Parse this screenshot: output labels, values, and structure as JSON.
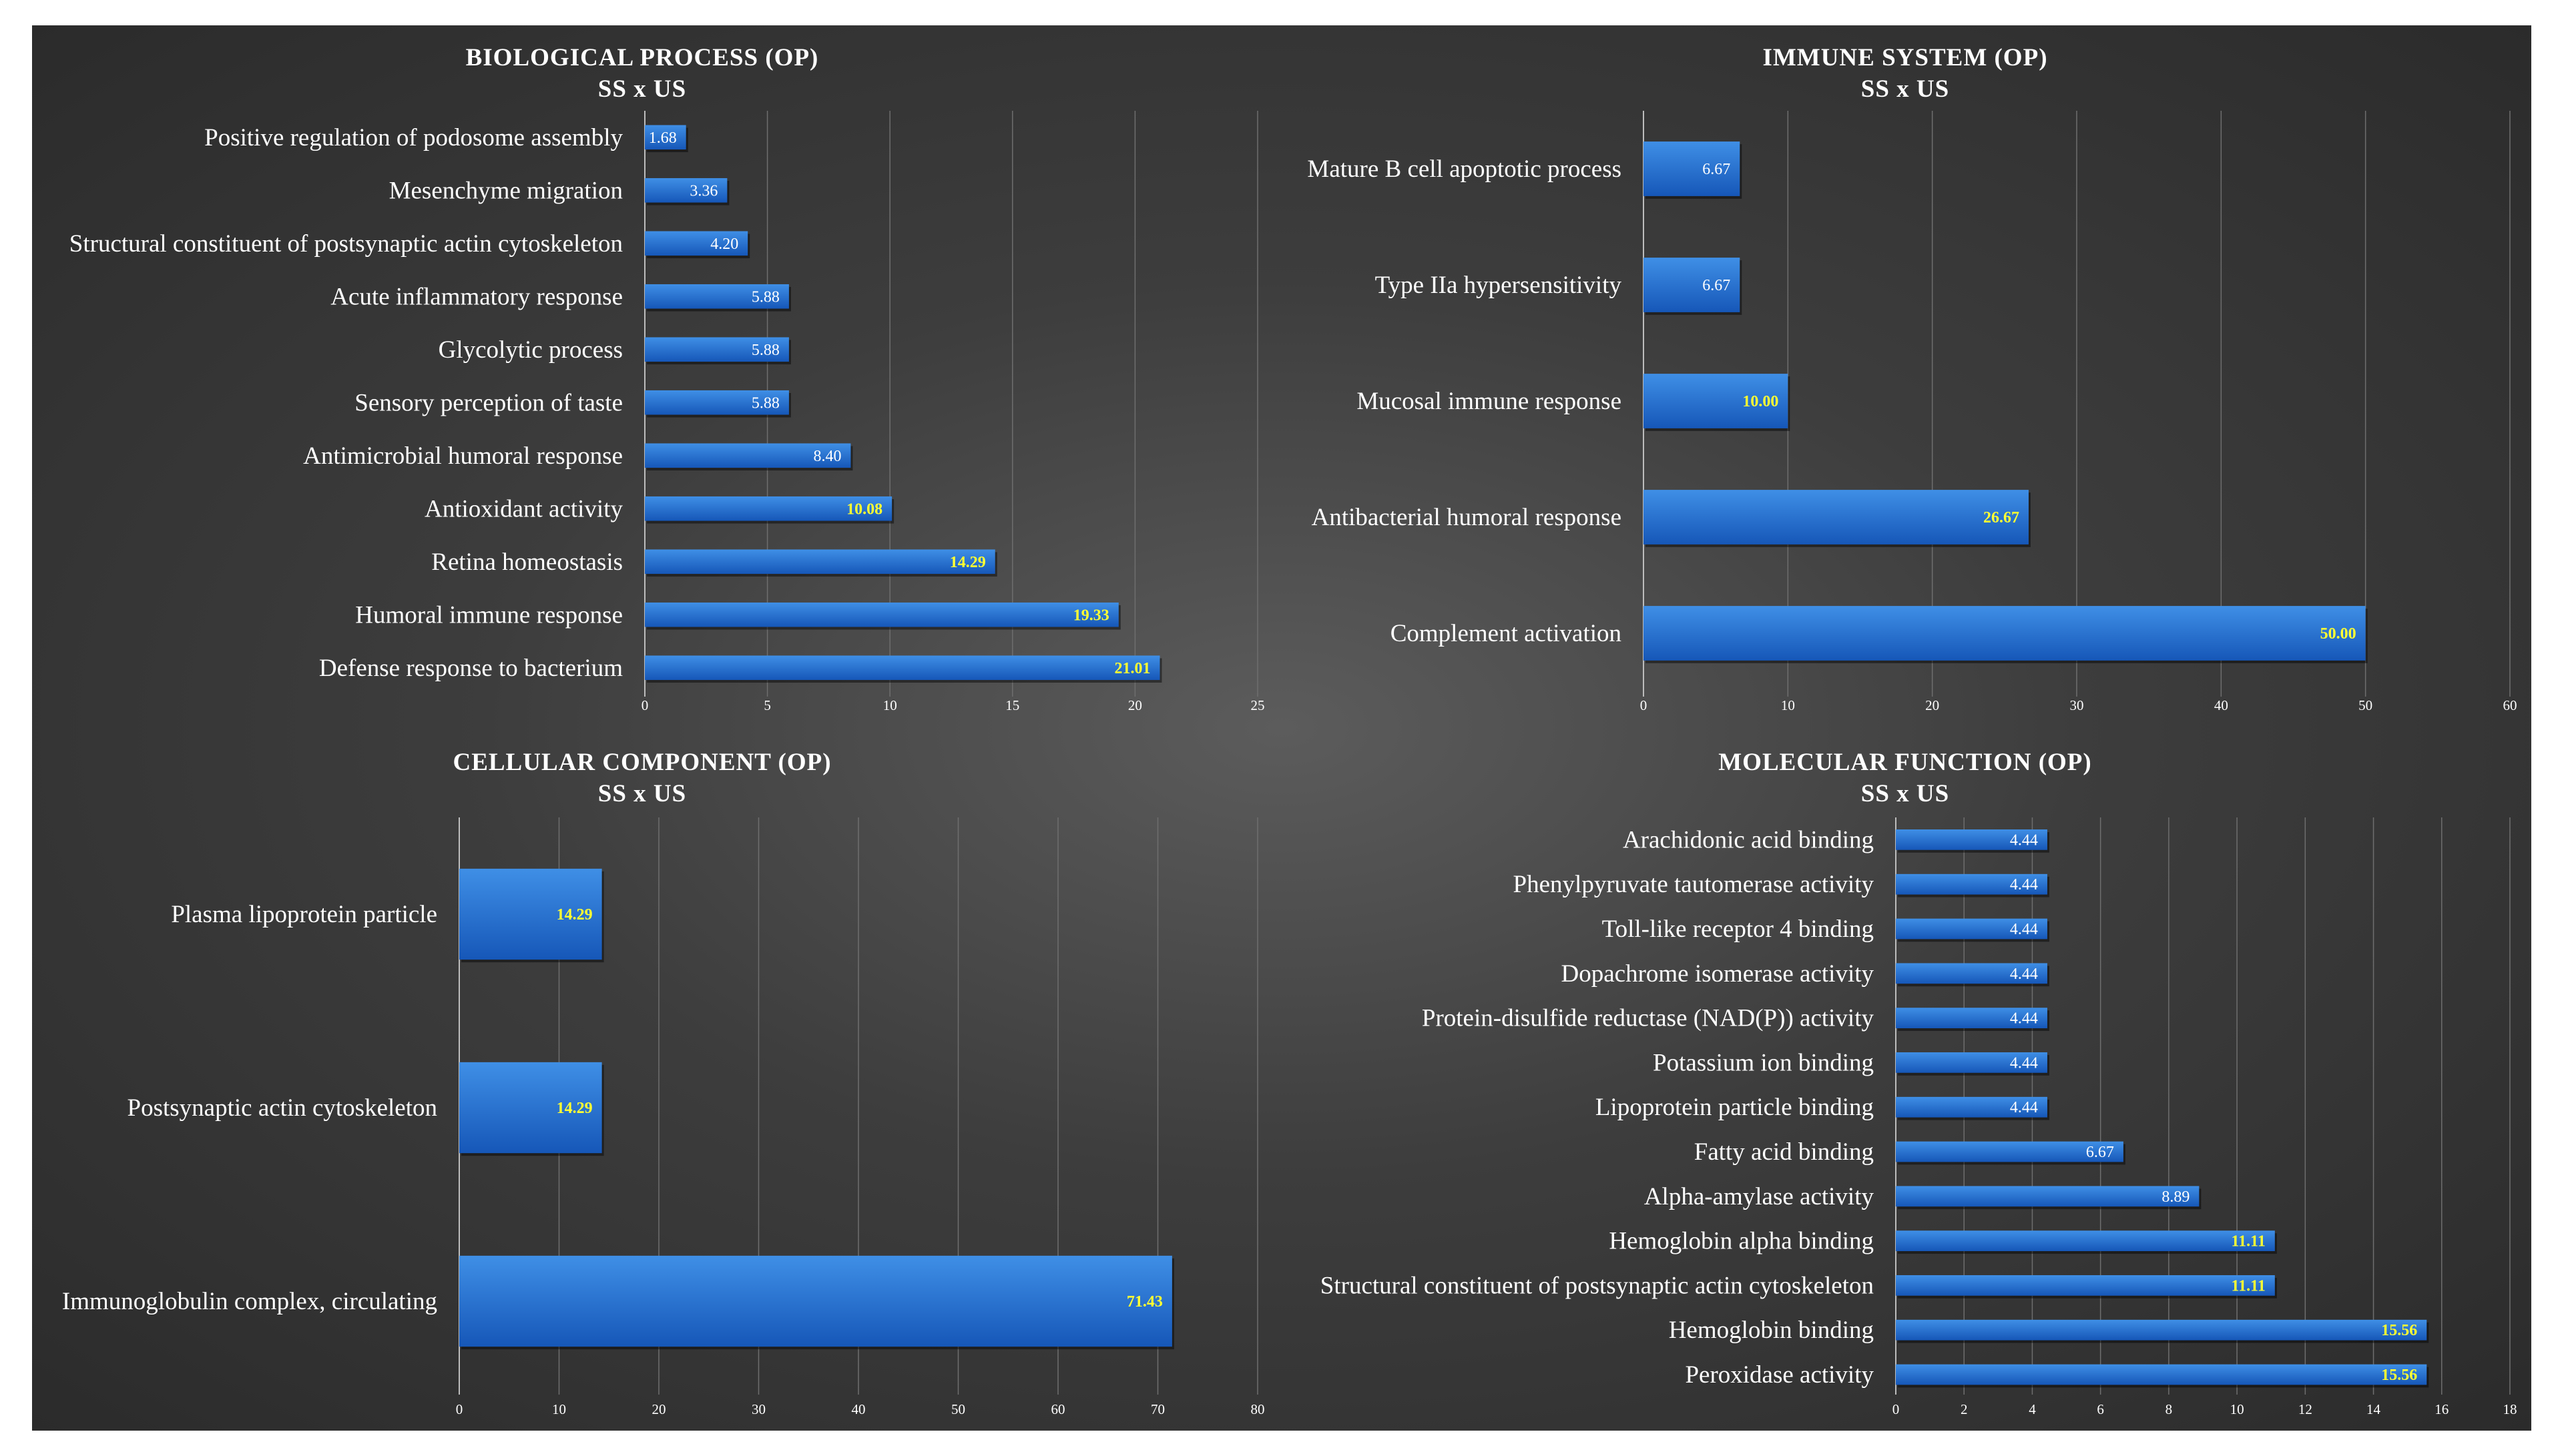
{
  "chart_data": [
    {
      "type": "bar",
      "orientation": "horizontal",
      "title": "BIOLOGICAL PROCESS (OP)",
      "subtitle": "SS x US",
      "categories": [
        "Positive regulation of podosome assembly",
        "Mesenchyme migration",
        "Structural constituent of postsynaptic actin cytoskeleton",
        "Acute inflammatory response",
        "Glycolytic process",
        "Sensory perception of taste",
        "Antimicrobial humoral response",
        "Antioxidant activity",
        "Retina homeostasis",
        "Humoral immune response",
        "Defense response to bacterium"
      ],
      "values": [
        1.68,
        3.36,
        4.2,
        5.88,
        5.88,
        5.88,
        8.4,
        10.08,
        14.29,
        19.33,
        21.01
      ],
      "value_labels": [
        "1.68",
        "3.36",
        "4.20",
        "5.88",
        "5.88",
        "5.88",
        "8.40",
        "10.08",
        "14.29",
        "19.33",
        "21.01"
      ],
      "xlim": [
        0,
        25
      ],
      "xticks": [
        "0",
        "5",
        "10",
        "15",
        "20",
        "25"
      ],
      "grid": true
    },
    {
      "type": "bar",
      "orientation": "horizontal",
      "title": "IMMUNE SYSTEM (OP)",
      "subtitle": "SS x US",
      "categories": [
        "Mature B cell apoptotic process",
        "Type IIa hypersensitivity",
        "Mucosal immune response",
        "Antibacterial humoral response",
        "Complement activation"
      ],
      "values": [
        6.67,
        6.67,
        10.0,
        26.67,
        50.0
      ],
      "value_labels": [
        "6.67",
        "6.67",
        "10.00",
        "26.67",
        "50.00"
      ],
      "xlim": [
        0,
        60
      ],
      "xticks": [
        "0",
        "10",
        "20",
        "30",
        "40",
        "50",
        "60"
      ],
      "grid": true
    },
    {
      "type": "bar",
      "orientation": "horizontal",
      "title": "CELLULAR COMPONENT (OP)",
      "subtitle": "SS x US",
      "categories": [
        "Plasma lipoprotein particle",
        "Postsynaptic actin cytoskeleton",
        "Immunoglobulin complex, circulating"
      ],
      "values": [
        14.29,
        14.29,
        71.43
      ],
      "value_labels": [
        "14.29",
        "14.29",
        "71.43"
      ],
      "xlim": [
        0,
        80
      ],
      "xticks": [
        "0",
        "10",
        "20",
        "30",
        "40",
        "50",
        "60",
        "70",
        "80"
      ],
      "grid": true
    },
    {
      "type": "bar",
      "orientation": "horizontal",
      "title": "MOLECULAR FUNCTION (OP)",
      "subtitle": "SS x US",
      "categories": [
        "Arachidonic acid binding",
        "Phenylpyruvate tautomerase activity",
        "Toll-like receptor 4 binding",
        "Dopachrome isomerase activity",
        "Protein-disulfide reductase (NAD(P)) activity",
        "Potassium ion binding",
        "Lipoprotein particle binding",
        "Fatty acid binding",
        "Alpha-amylase activity",
        "Hemoglobin alpha binding",
        "Structural constituent of postsynaptic actin cytoskeleton",
        "Hemoglobin binding",
        "Peroxidase activity"
      ],
      "values": [
        4.44,
        4.44,
        4.44,
        4.44,
        4.44,
        4.44,
        4.44,
        6.67,
        8.89,
        11.11,
        11.11,
        15.56,
        15.56
      ],
      "value_labels": [
        "4.44",
        "4.44",
        "4.44",
        "4.44",
        "4.44",
        "4.44",
        "4.44",
        "6.67",
        "8.89",
        "11.11",
        "11.11",
        "15.56",
        "15.56"
      ],
      "xlim": [
        0,
        18
      ],
      "xticks": [
        "0",
        "2",
        "4",
        "6",
        "8",
        "10",
        "12",
        "14",
        "16",
        "18"
      ],
      "grid": true
    }
  ],
  "style": {
    "bar_color_top": "#3f8fe6",
    "bar_color_bottom": "#1657b8",
    "label_color_default": "#ffffff",
    "label_color_highlight": "#ffff33",
    "highlight_threshold": 10
  }
}
